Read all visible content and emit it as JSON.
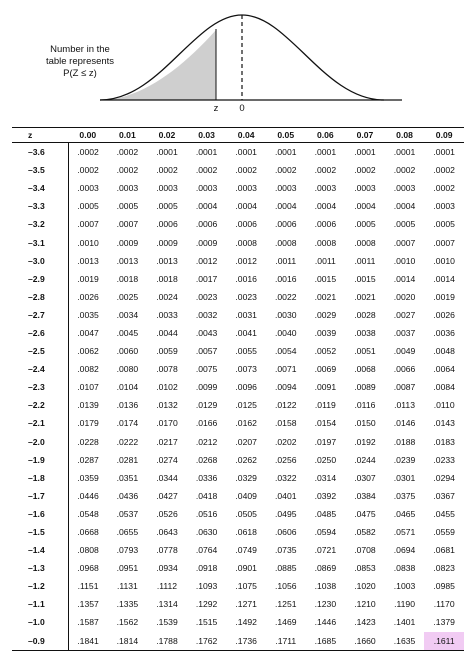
{
  "figure": {
    "caption_lines": [
      "Number in the",
      "table represents",
      "P(Z ≤ z)"
    ],
    "z_label": "z",
    "zero_label": "0"
  },
  "table": {
    "headers": [
      "z",
      "0.00",
      "0.01",
      "0.02",
      "0.03",
      "0.04",
      "0.05",
      "0.06",
      "0.07",
      "0.08",
      "0.09"
    ],
    "rows": [
      {
        "z": "–3.6",
        "values": [
          ".0002",
          ".0002",
          ".0001",
          ".0001",
          ".0001",
          ".0001",
          ".0001",
          ".0001",
          ".0001",
          ".0001"
        ]
      },
      {
        "z": "–3.5",
        "values": [
          ".0002",
          ".0002",
          ".0002",
          ".0002",
          ".0002",
          ".0002",
          ".0002",
          ".0002",
          ".0002",
          ".0002"
        ]
      },
      {
        "z": "–3.4",
        "values": [
          ".0003",
          ".0003",
          ".0003",
          ".0003",
          ".0003",
          ".0003",
          ".0003",
          ".0003",
          ".0003",
          ".0002"
        ]
      },
      {
        "z": "–3.3",
        "values": [
          ".0005",
          ".0005",
          ".0005",
          ".0004",
          ".0004",
          ".0004",
          ".0004",
          ".0004",
          ".0004",
          ".0003"
        ]
      },
      {
        "z": "–3.2",
        "values": [
          ".0007",
          ".0007",
          ".0006",
          ".0006",
          ".0006",
          ".0006",
          ".0006",
          ".0005",
          ".0005",
          ".0005"
        ]
      },
      {
        "z": "–3.1",
        "values": [
          ".0010",
          ".0009",
          ".0009",
          ".0009",
          ".0008",
          ".0008",
          ".0008",
          ".0008",
          ".0007",
          ".0007"
        ]
      },
      {
        "z": "–3.0",
        "values": [
          ".0013",
          ".0013",
          ".0013",
          ".0012",
          ".0012",
          ".0011",
          ".0011",
          ".0011",
          ".0010",
          ".0010"
        ]
      },
      {
        "z": "–2.9",
        "values": [
          ".0019",
          ".0018",
          ".0018",
          ".0017",
          ".0016",
          ".0016",
          ".0015",
          ".0015",
          ".0014",
          ".0014"
        ]
      },
      {
        "z": "–2.8",
        "values": [
          ".0026",
          ".0025",
          ".0024",
          ".0023",
          ".0023",
          ".0022",
          ".0021",
          ".0021",
          ".0020",
          ".0019"
        ]
      },
      {
        "z": "–2.7",
        "values": [
          ".0035",
          ".0034",
          ".0033",
          ".0032",
          ".0031",
          ".0030",
          ".0029",
          ".0028",
          ".0027",
          ".0026"
        ]
      },
      {
        "z": "–2.6",
        "values": [
          ".0047",
          ".0045",
          ".0044",
          ".0043",
          ".0041",
          ".0040",
          ".0039",
          ".0038",
          ".0037",
          ".0036"
        ]
      },
      {
        "z": "–2.5",
        "values": [
          ".0062",
          ".0060",
          ".0059",
          ".0057",
          ".0055",
          ".0054",
          ".0052",
          ".0051",
          ".0049",
          ".0048"
        ]
      },
      {
        "z": "–2.4",
        "values": [
          ".0082",
          ".0080",
          ".0078",
          ".0075",
          ".0073",
          ".0071",
          ".0069",
          ".0068",
          ".0066",
          ".0064"
        ]
      },
      {
        "z": "–2.3",
        "values": [
          ".0107",
          ".0104",
          ".0102",
          ".0099",
          ".0096",
          ".0094",
          ".0091",
          ".0089",
          ".0087",
          ".0084"
        ]
      },
      {
        "z": "–2.2",
        "values": [
          ".0139",
          ".0136",
          ".0132",
          ".0129",
          ".0125",
          ".0122",
          ".0119",
          ".0116",
          ".0113",
          ".0110"
        ]
      },
      {
        "z": "–2.1",
        "values": [
          ".0179",
          ".0174",
          ".0170",
          ".0166",
          ".0162",
          ".0158",
          ".0154",
          ".0150",
          ".0146",
          ".0143"
        ]
      },
      {
        "z": "–2.0",
        "values": [
          ".0228",
          ".0222",
          ".0217",
          ".0212",
          ".0207",
          ".0202",
          ".0197",
          ".0192",
          ".0188",
          ".0183"
        ]
      },
      {
        "z": "–1.9",
        "values": [
          ".0287",
          ".0281",
          ".0274",
          ".0268",
          ".0262",
          ".0256",
          ".0250",
          ".0244",
          ".0239",
          ".0233"
        ]
      },
      {
        "z": "–1.8",
        "values": [
          ".0359",
          ".0351",
          ".0344",
          ".0336",
          ".0329",
          ".0322",
          ".0314",
          ".0307",
          ".0301",
          ".0294"
        ]
      },
      {
        "z": "–1.7",
        "values": [
          ".0446",
          ".0436",
          ".0427",
          ".0418",
          ".0409",
          ".0401",
          ".0392",
          ".0384",
          ".0375",
          ".0367"
        ]
      },
      {
        "z": "–1.6",
        "values": [
          ".0548",
          ".0537",
          ".0526",
          ".0516",
          ".0505",
          ".0495",
          ".0485",
          ".0475",
          ".0465",
          ".0455"
        ]
      },
      {
        "z": "–1.5",
        "values": [
          ".0668",
          ".0655",
          ".0643",
          ".0630",
          ".0618",
          ".0606",
          ".0594",
          ".0582",
          ".0571",
          ".0559"
        ]
      },
      {
        "z": "–1.4",
        "values": [
          ".0808",
          ".0793",
          ".0778",
          ".0764",
          ".0749",
          ".0735",
          ".0721",
          ".0708",
          ".0694",
          ".0681"
        ]
      },
      {
        "z": "–1.3",
        "values": [
          ".0968",
          ".0951",
          ".0934",
          ".0918",
          ".0901",
          ".0885",
          ".0869",
          ".0853",
          ".0838",
          ".0823"
        ]
      },
      {
        "z": "–1.2",
        "values": [
          ".1151",
          ".1131",
          ".1112",
          ".1093",
          ".1075",
          ".1056",
          ".1038",
          ".1020",
          ".1003",
          ".0985"
        ]
      },
      {
        "z": "–1.1",
        "values": [
          ".1357",
          ".1335",
          ".1314",
          ".1292",
          ".1271",
          ".1251",
          ".1230",
          ".1210",
          ".1190",
          ".1170"
        ]
      },
      {
        "z": "–1.0",
        "values": [
          ".1587",
          ".1562",
          ".1539",
          ".1515",
          ".1492",
          ".1469",
          ".1446",
          ".1423",
          ".1401",
          ".1379"
        ]
      },
      {
        "z": "–0.9",
        "values": [
          ".1841",
          ".1814",
          ".1788",
          ".1762",
          ".1736",
          ".1711",
          ".1685",
          ".1660",
          ".1635",
          ".1611"
        ]
      }
    ],
    "highlight_color": "#f1cbf3"
  }
}
